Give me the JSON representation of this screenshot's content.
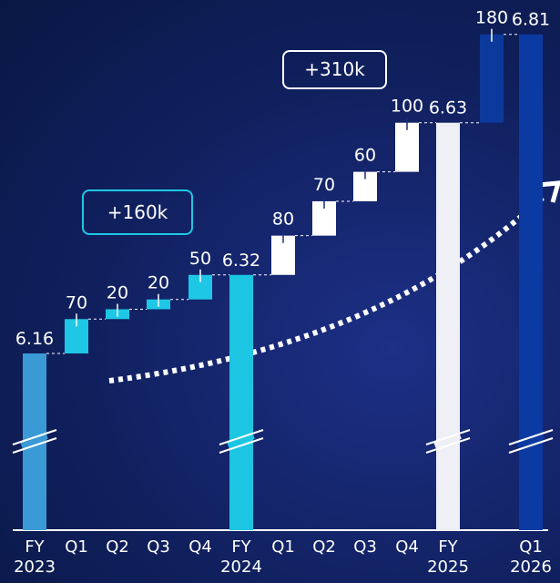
{
  "chart_data": {
    "type": "waterfall",
    "categories": [
      "FY\n2023",
      "Q1",
      "Q2",
      "Q3",
      "Q4",
      "FY\n2024",
      "Q1",
      "Q2",
      "Q3",
      "Q4",
      "FY\n2025",
      null,
      "Q1\n2026"
    ],
    "measure": [
      "total",
      "relative",
      "relative",
      "relative",
      "relative",
      "total",
      "relative",
      "relative",
      "relative",
      "relative",
      "total",
      "relative",
      "total"
    ],
    "values": [
      6.16,
      70,
      20,
      20,
      50,
      6.32,
      80,
      70,
      60,
      100,
      6.63,
      180,
      6.81
    ],
    "colors": [
      "#3a9ad6",
      "#1fc7e6",
      "#1fc7e6",
      "#1fc7e6",
      "#1fc7e6",
      "#1cc5e2",
      "#ffffff",
      "#ffffff",
      "#ffffff",
      "#ffffff",
      "#eef0f6",
      "#0b3a9c",
      "#0c3aa3"
    ],
    "ylim": [
      5.8,
      6.88
    ],
    "annotations": [
      {
        "text": "+160k",
        "color": "#1fc7e6"
      },
      {
        "text": "+310k",
        "color": "#ffffff"
      }
    ]
  }
}
